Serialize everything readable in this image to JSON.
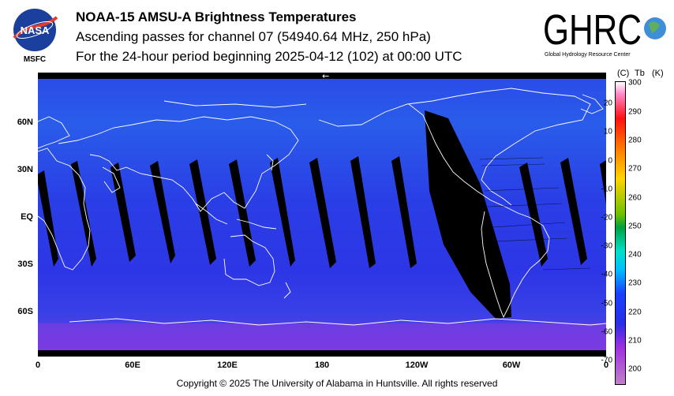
{
  "header": {
    "title": "NOAA-15 AMSU-A Brightness Temperatures",
    "subtitle": "Ascending passes for channel 07 (54940.64 MHz, 250 hPa)",
    "period": "For the 24-hour period beginning 2025-04-12 (102) at 00:00 UTC"
  },
  "logos": {
    "nasa_text": "NASA",
    "msfc_text": "MSFC",
    "ghrc_text": "GHRC",
    "ghrc_subtitle": "Global Hydrology Resource Center"
  },
  "map": {
    "y_labels": [
      "60N",
      "30N",
      "EQ",
      "30S",
      "60S"
    ],
    "x_labels": [
      "0",
      "60E",
      "120E",
      "180",
      "120W",
      "60W",
      "0"
    ],
    "colors": {
      "background": "#2a2ee6",
      "missing": "#000000",
      "coastline": "#ffffff"
    }
  },
  "colorbar": {
    "celsius_label": "(C)",
    "tb_label": "Tb",
    "kelvin_label": "(K)",
    "celsius_ticks": [
      "20",
      "10",
      "0",
      "-10",
      "-20",
      "-30",
      "-40",
      "-50",
      "-60",
      "-70"
    ],
    "kelvin_ticks": [
      "300",
      "290",
      "280",
      "270",
      "260",
      "250",
      "240",
      "230",
      "220",
      "210",
      "200"
    ]
  },
  "footer": {
    "copyright": "Copyright © 2025 The University of Alabama in Huntsville.  All rights reserved"
  }
}
